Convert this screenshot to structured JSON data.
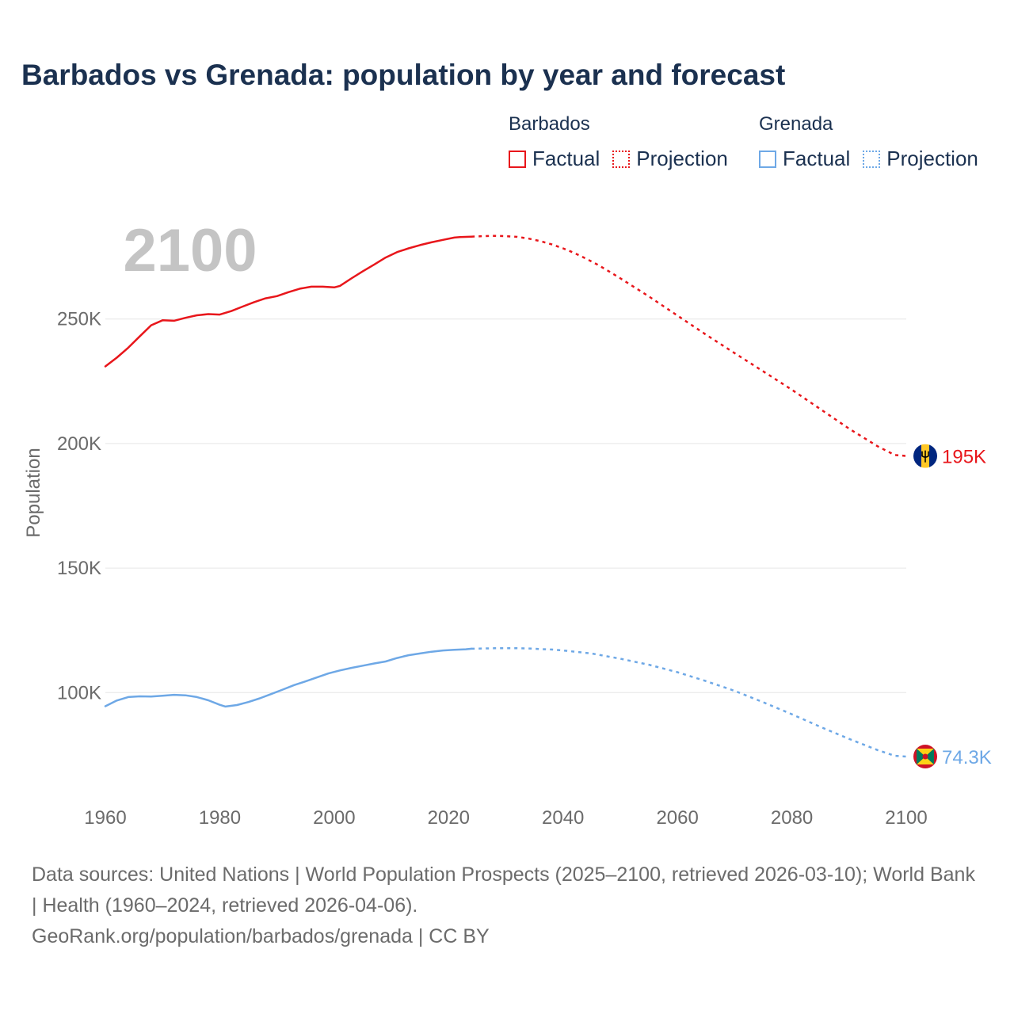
{
  "title": "Barbados vs Grenada: population by year and forecast",
  "legend": {
    "groups": [
      {
        "name": "Barbados",
        "factual_label": "Factual",
        "projection_label": "Projection",
        "color": "#e8161b"
      },
      {
        "name": "Grenada",
        "factual_label": "Factual",
        "projection_label": "Projection",
        "color": "#6ea8e6"
      }
    ]
  },
  "footer": {
    "sources": "Data sources: United Nations | World Population Prospects (2025–2100, retrieved 2026-03-10); World Bank | Health (1960–2024, retrieved 2026-04-06).",
    "credit": "GeoRank.org/population/barbados/grenada | CC BY"
  },
  "chart_data": {
    "type": "line",
    "year_watermark": "2100",
    "ylabel": "Population",
    "xlabel": "",
    "xlim": [
      1960,
      2100
    ],
    "ylim": [
      60000,
      290000
    ],
    "x_ticks": [
      1960,
      1980,
      2000,
      2020,
      2040,
      2060,
      2080,
      2100
    ],
    "y_ticks": [
      100000,
      150000,
      200000,
      250000
    ],
    "y_tick_labels": [
      "100K",
      "150K",
      "200K",
      "250K"
    ],
    "grid": true,
    "series": [
      {
        "name": "Barbados",
        "color": "#e8161b",
        "end_label": "195K",
        "factual": {
          "x": [
            1960,
            1962,
            1964,
            1966,
            1968,
            1970,
            1972,
            1974,
            1976,
            1978,
            1980,
            1982,
            1984,
            1986,
            1988,
            1990,
            1992,
            1994,
            1996,
            1998,
            2000,
            2001,
            2003,
            2005,
            2007,
            2009,
            2011,
            2013,
            2015,
            2017,
            2019,
            2021,
            2022,
            2023,
            2024
          ],
          "y": [
            231000,
            234500,
            238500,
            243000,
            247500,
            249500,
            249300,
            250500,
            251500,
            252000,
            251800,
            253200,
            255000,
            256800,
            258300,
            259200,
            260800,
            262200,
            263000,
            263000,
            262700,
            263300,
            266300,
            269200,
            271900,
            274700,
            276900,
            278400,
            279700,
            280800,
            281800,
            282700,
            282900,
            283000,
            283100
          ]
        },
        "projection": {
          "x": [
            2024,
            2026,
            2028,
            2030,
            2032,
            2034,
            2036,
            2038,
            2040,
            2042,
            2044,
            2046,
            2048,
            2050,
            2055,
            2060,
            2065,
            2070,
            2075,
            2080,
            2085,
            2090,
            2095,
            2098,
            2100
          ],
          "y": [
            283100,
            283300,
            283400,
            283300,
            283000,
            282300,
            281300,
            280000,
            278400,
            276500,
            274300,
            271900,
            269200,
            266400,
            259100,
            251400,
            243700,
            236300,
            229000,
            221600,
            213800,
            206000,
            198900,
            195400,
            195000
          ]
        }
      },
      {
        "name": "Grenada",
        "color": "#6ea8e6",
        "end_label": "74.3K",
        "factual": {
          "x": [
            1960,
            1962,
            1964,
            1966,
            1968,
            1970,
            1972,
            1974,
            1976,
            1978,
            1980,
            1981,
            1983,
            1985,
            1987,
            1989,
            1991,
            1993,
            1995,
            1997,
            1999,
            2001,
            2003,
            2005,
            2007,
            2009,
            2011,
            2013,
            2015,
            2017,
            2019,
            2021,
            2023,
            2024
          ],
          "y": [
            94500,
            96800,
            98200,
            98500,
            98400,
            98700,
            99100,
            98900,
            98200,
            96900,
            95100,
            94400,
            95000,
            96200,
            97700,
            99400,
            101200,
            103000,
            104500,
            106100,
            107700,
            108900,
            109900,
            110800,
            111700,
            112500,
            113900,
            115000,
            115700,
            116400,
            116900,
            117200,
            117400,
            117600
          ]
        },
        "projection": {
          "x": [
            2024,
            2026,
            2028,
            2030,
            2032,
            2034,
            2036,
            2038,
            2040,
            2045,
            2050,
            2055,
            2060,
            2065,
            2070,
            2075,
            2080,
            2085,
            2090,
            2095,
            2098,
            2100
          ],
          "y": [
            117600,
            117700,
            117800,
            117800,
            117800,
            117700,
            117500,
            117300,
            116900,
            115700,
            113600,
            111200,
            108200,
            104600,
            100700,
            96100,
            91300,
            86200,
            81400,
            76900,
            74600,
            74300
          ]
        }
      }
    ]
  }
}
